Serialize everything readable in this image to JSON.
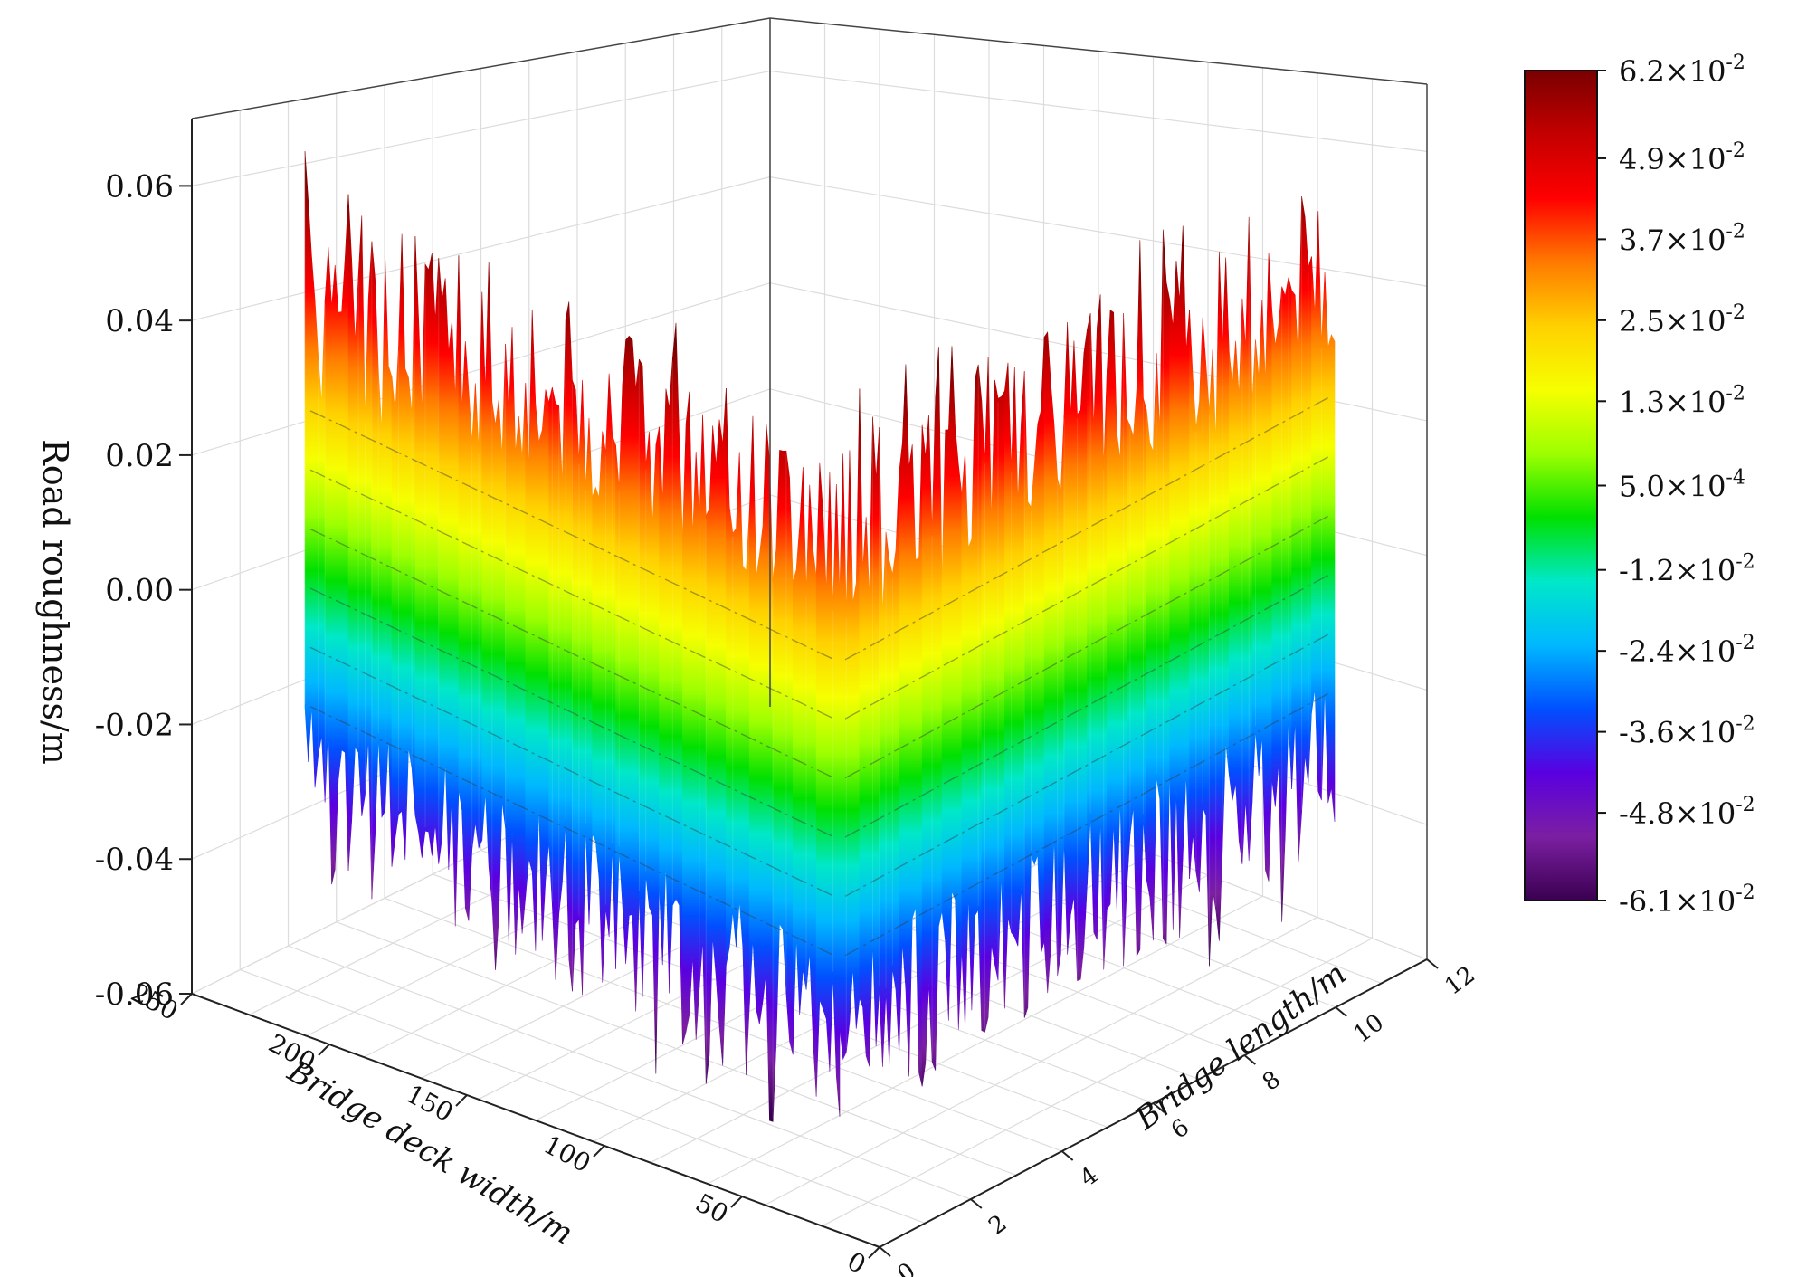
{
  "chart_data": {
    "type": "surface3d",
    "title": "",
    "zlabel": "Road roughness/m",
    "xlabel": "Bridge deck width/m",
    "ylabel": "Bridge length/m",
    "z_ticks": [
      "0.06",
      "0.04",
      "0.02",
      "0.00",
      "-0.02",
      "-0.04",
      "-0.06"
    ],
    "z_tick_values": [
      0.06,
      0.04,
      0.02,
      0.0,
      -0.02,
      -0.04,
      -0.06
    ],
    "x_ticks": [
      "250",
      "200",
      "150",
      "100",
      "50",
      "0"
    ],
    "x_tick_values": [
      250,
      200,
      150,
      100,
      50,
      0
    ],
    "y_ticks": [
      "0",
      "2",
      "4",
      "6",
      "8",
      "10",
      "12"
    ],
    "y_tick_values": [
      0,
      2,
      4,
      6,
      8,
      10,
      12
    ],
    "xlim": [
      0,
      250
    ],
    "ylim": [
      0,
      12
    ],
    "zlim": [
      -0.06,
      0.07
    ],
    "grid": true,
    "surface_value_range": [
      -0.061,
      0.062
    ],
    "colorbar": {
      "position": "right",
      "labels": [
        {
          "value": 0.062,
          "mantissa": "6.2",
          "exponent": "-2"
        },
        {
          "value": 0.049,
          "mantissa": "4.9",
          "exponent": "-2"
        },
        {
          "value": 0.037,
          "mantissa": "3.7",
          "exponent": "-2"
        },
        {
          "value": 0.025,
          "mantissa": "2.5",
          "exponent": "-2"
        },
        {
          "value": 0.013,
          "mantissa": "1.3",
          "exponent": "-2"
        },
        {
          "value": 0.0005,
          "mantissa": "5.0",
          "exponent": "-4"
        },
        {
          "value": -0.012,
          "mantissa": "-1.2",
          "exponent": "-2"
        },
        {
          "value": -0.024,
          "mantissa": "-2.4",
          "exponent": "-2"
        },
        {
          "value": -0.036,
          "mantissa": "-3.6",
          "exponent": "-2"
        },
        {
          "value": -0.048,
          "mantissa": "-4.8",
          "exponent": "-2"
        },
        {
          "value": -0.061,
          "mantissa": "-6.1",
          "exponent": "-2"
        }
      ],
      "colors": [
        "#7a0000",
        "#c40000",
        "#ff0000",
        "#ff7a00",
        "#ffd000",
        "#f6ff00",
        "#9dff00",
        "#00e000",
        "#00e8c8",
        "#00b8ff",
        "#0050ff",
        "#5a00e0",
        "#7b1fa2",
        "#3a0050"
      ]
    }
  }
}
